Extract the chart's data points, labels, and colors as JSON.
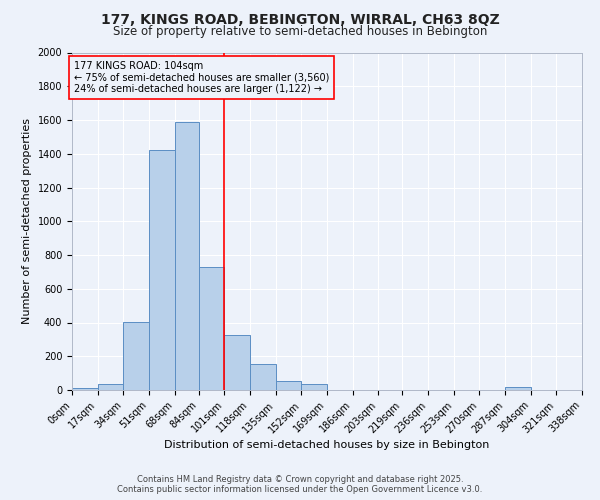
{
  "title_line1": "177, KINGS ROAD, BEBINGTON, WIRRAL, CH63 8QZ",
  "title_line2": "Size of property relative to semi-detached houses in Bebington",
  "xlabel": "Distribution of semi-detached houses by size in Bebington",
  "ylabel": "Number of semi-detached properties",
  "footer_line1": "Contains HM Land Registry data © Crown copyright and database right 2025.",
  "footer_line2": "Contains public sector information licensed under the Open Government Licence v3.0.",
  "bin_edges": [
    0,
    17,
    34,
    51,
    68,
    84,
    101,
    118,
    135,
    152,
    169,
    186,
    203,
    219,
    236,
    253,
    270,
    287,
    304,
    321,
    338
  ],
  "bin_labels": [
    "0sqm",
    "17sqm",
    "34sqm",
    "51sqm",
    "68sqm",
    "84sqm",
    "101sqm",
    "118sqm",
    "135sqm",
    "152sqm",
    "169sqm",
    "186sqm",
    "203sqm",
    "219sqm",
    "236sqm",
    "253sqm",
    "270sqm",
    "287sqm",
    "304sqm",
    "321sqm",
    "338sqm"
  ],
  "counts": [
    10,
    35,
    405,
    1420,
    1590,
    730,
    325,
    155,
    55,
    35,
    0,
    0,
    0,
    0,
    0,
    0,
    0,
    15,
    0,
    0
  ],
  "vline_x": 101,
  "bar_color": "#b8d0ea",
  "bar_edgecolor": "#5b8ec4",
  "vline_color": "red",
  "annotation_title": "177 KINGS ROAD: 104sqm",
  "annotation_line1": "← 75% of semi-detached houses are smaller (3,560)",
  "annotation_line2": "24% of semi-detached houses are larger (1,122) →",
  "annotation_box_color": "red",
  "ylim": [
    0,
    2000
  ],
  "yticks": [
    0,
    200,
    400,
    600,
    800,
    1000,
    1200,
    1400,
    1600,
    1800,
    2000
  ],
  "background_color": "#edf2fa",
  "grid_color": "white",
  "title_fontsize": 10,
  "subtitle_fontsize": 8.5,
  "axis_label_fontsize": 8,
  "tick_fontsize": 7,
  "annotation_fontsize": 7,
  "footer_fontsize": 6
}
